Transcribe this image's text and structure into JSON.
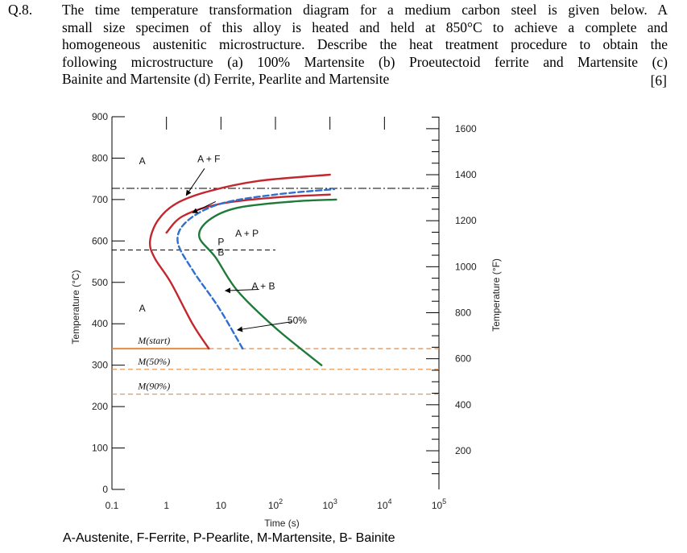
{
  "question": {
    "number": "Q.8.",
    "lines": [
      "The time temperature transformation diagram for a medium carbon steel is given below. A",
      "small size specimen of this alloy is heated and held at 850°C to achieve a complete and",
      "homogeneous austenitic microstructure. Describe the heat treatment procedure to obtain the",
      "following microstructure (a) 100% Martensite (b) Proeutectoid ferrite and Martensite (c)",
      "Bainite and Martensite  (d) Ferrite, Pearlite and Martensite"
    ],
    "marks": "[6]"
  },
  "chart_data": {
    "type": "line",
    "xlabel": "Time (s)",
    "ylabel_left": "Temperature (°C)",
    "ylabel_right": "Temperature (°F)",
    "x_scale": "log",
    "xlim": [
      0.1,
      100000
    ],
    "ylim": [
      0,
      900
    ],
    "x_ticks": [
      {
        "value": 0.1,
        "label": "0.1"
      },
      {
        "value": 1,
        "label": "1"
      },
      {
        "value": 10,
        "label": "10"
      },
      {
        "value": 100,
        "label": "10",
        "sup": "2"
      },
      {
        "value": 1000,
        "label": "10",
        "sup": "3"
      },
      {
        "value": 10000,
        "label": "10",
        "sup": "4"
      },
      {
        "value": 100000,
        "label": "10",
        "sup": "5"
      }
    ],
    "y_ticks_left": [
      0,
      100,
      200,
      300,
      400,
      500,
      600,
      700,
      800,
      900
    ],
    "y_ticks_right_F": [
      200,
      400,
      600,
      800,
      1000,
      1200,
      1400,
      1600
    ],
    "eutectoid_temp": 727,
    "series": [
      {
        "id": "ferrite-start",
        "color": "#c1272d",
        "style": "solid",
        "points": [
          [
            6,
            340
          ],
          [
            3,
            400
          ],
          [
            1.2,
            500
          ],
          [
            0.6,
            560
          ],
          [
            0.5,
            600
          ],
          [
            0.7,
            650
          ],
          [
            1.5,
            690
          ],
          [
            6,
            720
          ],
          [
            50,
            745
          ],
          [
            1000,
            760
          ]
        ]
      },
      {
        "id": "pearlite-start",
        "color": "#c1272d",
        "style": "solid",
        "points": [
          [
            1,
            620
          ],
          [
            2,
            660
          ],
          [
            10,
            690
          ],
          [
            100,
            705
          ],
          [
            1000,
            712
          ]
        ]
      },
      {
        "id": "fifty-percent",
        "color": "#2e6fcf",
        "style": "dashed",
        "points": [
          [
            25,
            340
          ],
          [
            9,
            440
          ],
          [
            3,
            530
          ],
          [
            1.6,
            600
          ],
          [
            2.5,
            650
          ],
          [
            10,
            690
          ],
          [
            100,
            712
          ],
          [
            1200,
            725
          ]
        ]
      },
      {
        "id": "finish",
        "color": "#1f7a3a",
        "style": "solid",
        "points": [
          [
            700,
            300
          ],
          [
            100,
            390
          ],
          [
            20,
            480
          ],
          [
            8,
            560
          ],
          [
            4,
            610
          ],
          [
            6,
            650
          ],
          [
            20,
            680
          ],
          [
            200,
            695
          ],
          [
            1300,
            700
          ]
        ]
      }
    ],
    "horizontal_lines": [
      {
        "id": "m-start",
        "temp": 340,
        "label": "M(start)",
        "color": "#e88a3c",
        "style": "solid",
        "label_x": 0.3
      },
      {
        "id": "m-50",
        "temp": 290,
        "label": "M(50%)",
        "color": "#e88a3c",
        "style": "dashed",
        "label_x": 0.3
      },
      {
        "id": "m-90",
        "temp": 230,
        "label": "M(90%)",
        "color": "#e88a3c",
        "style": "dashed",
        "label_x": 0.3
      }
    ],
    "annotations": [
      {
        "id": "label-a-top",
        "text": "A",
        "x": 0.36,
        "y": 785
      },
      {
        "id": "label-a-f",
        "text": "A + F",
        "x": 6,
        "y": 790
      },
      {
        "id": "label-a-p",
        "text": "A + P",
        "x": 30,
        "y": 610
      },
      {
        "id": "label-p",
        "text": "P",
        "x": 10,
        "y": 590
      },
      {
        "id": "label-b",
        "text": "B",
        "x": 10,
        "y": 565
      },
      {
        "id": "label-a-b",
        "text": "A + B",
        "x": 60,
        "y": 483
      },
      {
        "id": "label-a-low",
        "text": "A",
        "x": 0.36,
        "y": 430
      },
      {
        "id": "label-50",
        "text": "50%",
        "x": 250,
        "y": 400
      }
    ]
  },
  "legend_text": "A-Austenite, F-Ferrite, P-Pearlite, M-Martensite, B- Bainite"
}
